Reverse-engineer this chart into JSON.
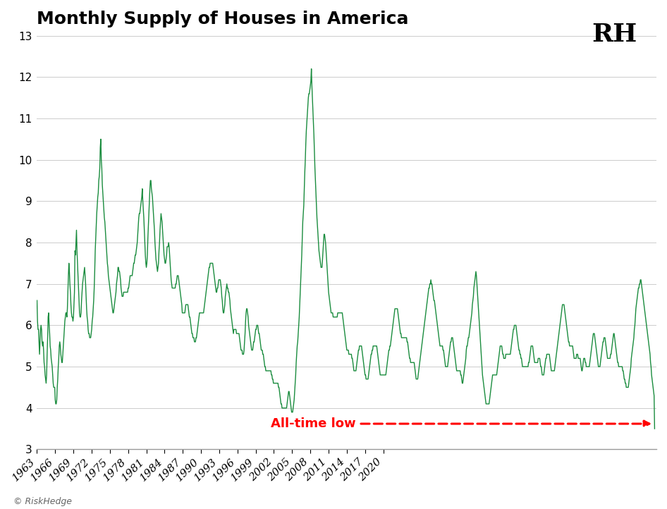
{
  "title": "Monthly Supply of Houses in America",
  "line_color": "#1a8c3e",
  "background_color": "#ffffff",
  "grid_color": "#cccccc",
  "annotation_color": "#ff0000",
  "annotation_text": "All-time low",
  "yticks": [
    3,
    4,
    5,
    6,
    7,
    8,
    9,
    10,
    11,
    12,
    13
  ],
  "xtick_years": [
    1963,
    1966,
    1969,
    1972,
    1975,
    1978,
    1981,
    1984,
    1987,
    1990,
    1993,
    1996,
    1999,
    2002,
    2005,
    2008,
    2011,
    2014,
    2017,
    2020
  ],
  "ylim": [
    3,
    13
  ],
  "logo_text": "RH",
  "footer_text": "© RiskHedge",
  "start_year": 1963,
  "start_month": 1,
  "values": [
    6.6,
    6.1,
    5.9,
    5.9,
    5.6,
    5.3,
    5.6,
    5.9,
    6.0,
    5.9,
    5.6,
    5.5,
    5.6,
    5.4,
    5.1,
    5.0,
    4.8,
    4.7,
    4.6,
    4.8,
    5.3,
    5.7,
    6.2,
    6.3,
    6.0,
    5.8,
    5.5,
    5.4,
    5.2,
    5.1,
    5.0,
    4.8,
    4.6,
    4.5,
    4.5,
    4.5,
    4.2,
    4.1,
    4.1,
    4.2,
    4.5,
    4.7,
    5.0,
    5.2,
    5.5,
    5.6,
    5.5,
    5.3,
    5.2,
    5.1,
    5.1,
    5.3,
    5.5,
    5.7,
    5.9,
    6.1,
    6.2,
    6.3,
    6.3,
    6.2,
    6.4,
    6.8,
    7.2,
    7.5,
    7.3,
    7.0,
    6.8,
    6.5,
    6.3,
    6.2,
    6.2,
    6.1,
    6.2,
    6.5,
    6.8,
    7.8,
    7.7,
    8.0,
    8.3,
    7.8,
    7.5,
    7.2,
    6.9,
    6.6,
    6.3,
    6.2,
    6.2,
    6.3,
    6.6,
    6.8,
    7.0,
    7.1,
    7.2,
    7.3,
    7.4,
    7.2,
    7.0,
    6.7,
    6.4,
    6.2,
    6.1,
    5.9,
    5.8,
    5.8,
    5.7,
    5.7,
    5.7,
    5.8,
    5.9,
    6.1,
    6.2,
    6.4,
    6.6,
    6.9,
    7.3,
    7.8,
    8.1,
    8.4,
    8.7,
    8.9,
    9.1,
    9.2,
    9.5,
    9.6,
    9.8,
    10.3,
    10.5,
    10.0,
    9.8,
    9.4,
    9.2,
    9.0,
    8.8,
    8.6,
    8.5,
    8.3,
    8.1,
    7.9,
    7.7,
    7.5,
    7.4,
    7.2,
    7.1,
    7.0,
    6.9,
    6.8,
    6.7,
    6.6,
    6.5,
    6.4,
    6.3,
    6.3,
    6.4,
    6.5,
    6.6,
    6.7,
    6.8,
    7.0,
    7.1,
    7.2,
    7.4,
    7.4,
    7.3,
    7.3,
    7.2,
    7.1,
    6.9,
    6.8,
    6.7,
    6.7,
    6.7,
    6.8,
    6.8,
    6.8,
    6.8,
    6.8,
    6.8,
    6.8,
    6.8,
    6.8,
    6.9,
    6.9,
    7.0,
    7.1,
    7.2,
    7.2,
    7.2,
    7.2,
    7.2,
    7.3,
    7.4,
    7.5,
    7.5,
    7.6,
    7.7,
    7.7,
    7.8,
    7.9,
    8.0,
    8.2,
    8.4,
    8.6,
    8.7,
    8.7,
    8.8,
    8.9,
    9.0,
    9.1,
    9.3,
    9.0,
    8.8,
    8.6,
    8.3,
    8.0,
    7.7,
    7.5,
    7.4,
    7.5,
    7.7,
    8.1,
    8.4,
    8.7,
    9.0,
    9.3,
    9.5,
    9.5,
    9.3,
    9.2,
    9.1,
    8.9,
    8.7,
    8.5,
    8.3,
    8.0,
    7.8,
    7.6,
    7.5,
    7.4,
    7.3,
    7.4,
    7.5,
    7.8,
    8.0,
    8.3,
    8.5,
    8.7,
    8.6,
    8.5,
    8.3,
    8.1,
    7.9,
    7.7,
    7.6,
    7.5,
    7.5,
    7.6,
    7.7,
    7.9,
    7.9,
    7.9,
    8.0,
    7.9,
    7.7,
    7.5,
    7.3,
    7.1,
    7.0,
    6.9,
    6.9,
    6.9,
    6.9,
    6.9,
    6.9,
    6.9,
    7.0,
    7.0,
    7.1,
    7.2,
    7.2,
    7.2,
    7.1,
    7.0,
    6.9,
    6.8,
    6.7,
    6.6,
    6.5,
    6.3,
    6.3,
    6.3,
    6.3,
    6.3,
    6.3,
    6.4,
    6.5,
    6.5,
    6.5,
    6.5,
    6.5,
    6.4,
    6.3,
    6.2,
    6.2,
    6.1,
    6.0,
    5.9,
    5.8,
    5.8,
    5.7,
    5.7,
    5.7,
    5.6,
    5.6,
    5.6,
    5.7,
    5.7,
    5.8,
    5.9,
    6.0,
    6.1,
    6.2,
    6.3,
    6.3,
    6.3,
    6.3,
    6.3,
    6.3,
    6.3,
    6.3,
    6.3,
    6.4,
    6.5,
    6.6,
    6.7,
    6.8,
    6.9,
    7.0,
    7.1,
    7.2,
    7.3,
    7.4,
    7.4,
    7.5,
    7.5,
    7.5,
    7.5,
    7.5,
    7.5,
    7.4,
    7.3,
    7.2,
    7.1,
    7.0,
    6.9,
    6.8,
    6.8,
    6.9,
    6.9,
    7.0,
    7.1,
    7.1,
    7.1,
    7.1,
    7.0,
    6.9,
    6.7,
    6.6,
    6.4,
    6.3,
    6.3,
    6.4,
    6.5,
    6.7,
    6.8,
    6.9,
    7.0,
    6.9,
    6.9,
    6.8,
    6.8,
    6.7,
    6.6,
    6.4,
    6.3,
    6.2,
    6.1,
    6.0,
    5.9,
    5.8,
    5.9,
    5.9,
    5.9,
    5.9,
    5.9,
    5.8,
    5.8,
    5.8,
    5.8,
    5.8,
    5.8,
    5.7,
    5.6,
    5.5,
    5.4,
    5.4,
    5.4,
    5.3,
    5.3,
    5.3,
    5.4,
    5.6,
    5.8,
    6.1,
    6.3,
    6.4,
    6.4,
    6.3,
    6.2,
    6.0,
    5.9,
    5.8,
    5.7,
    5.6,
    5.5,
    5.4,
    5.4,
    5.4,
    5.5,
    5.6,
    5.6,
    5.7,
    5.8,
    5.9,
    5.9,
    6.0,
    6.0,
    6.0,
    5.9,
    5.8,
    5.8,
    5.7,
    5.6,
    5.5,
    5.4,
    5.4,
    5.4,
    5.3,
    5.3,
    5.2,
    5.1,
    5.0,
    5.0,
    4.9,
    4.9,
    4.9,
    4.9,
    4.9,
    4.9,
    4.9,
    4.9,
    4.9,
    4.9,
    4.9,
    4.8,
    4.8,
    4.7,
    4.7,
    4.6,
    4.6,
    4.6,
    4.6,
    4.6,
    4.6,
    4.6,
    4.6,
    4.6,
    4.6,
    4.5,
    4.5,
    4.4,
    4.3,
    4.2,
    4.1,
    4.1,
    4.0,
    4.0,
    4.0,
    4.0,
    4.0,
    4.0,
    4.0,
    4.0,
    4.0,
    4.0,
    4.1,
    4.2,
    4.3,
    4.4,
    4.4,
    4.3,
    4.2,
    4.1,
    4.0,
    3.9,
    3.9,
    3.9,
    4.0,
    4.1,
    4.2,
    4.4,
    4.6,
    4.8,
    5.1,
    5.3,
    5.5,
    5.6,
    5.8,
    6.0,
    6.2,
    6.5,
    6.8,
    7.1,
    7.4,
    7.7,
    8.1,
    8.5,
    8.7,
    8.9,
    9.3,
    9.7,
    10.0,
    10.4,
    10.7,
    10.9,
    11.1,
    11.3,
    11.5,
    11.6,
    11.6,
    11.7,
    11.8,
    11.9,
    12.2,
    11.8,
    11.5,
    11.2,
    10.9,
    10.6,
    10.2,
    9.8,
    9.5,
    9.2,
    8.9,
    8.6,
    8.4,
    8.2,
    8.0,
    7.8,
    7.7,
    7.6,
    7.5,
    7.4,
    7.4,
    7.4,
    7.6,
    7.8,
    8.0,
    8.2,
    8.2,
    8.1,
    8.0,
    7.8,
    7.6,
    7.4,
    7.2,
    7.0,
    6.8,
    6.7,
    6.6,
    6.5,
    6.4,
    6.3,
    6.3,
    6.3,
    6.3,
    6.2,
    6.2,
    6.2,
    6.2,
    6.2,
    6.2,
    6.2,
    6.2,
    6.2,
    6.3,
    6.3,
    6.3,
    6.3,
    6.3,
    6.3,
    6.3,
    6.3,
    6.3,
    6.3,
    6.2,
    6.1,
    6.0,
    5.9,
    5.8,
    5.7,
    5.6,
    5.5,
    5.4,
    5.4,
    5.4,
    5.4,
    5.3,
    5.3,
    5.3,
    5.3,
    5.3,
    5.3,
    5.2,
    5.2,
    5.1,
    5.0,
    4.9,
    4.9,
    4.9,
    4.9,
    4.9,
    5.0,
    5.1,
    5.2,
    5.3,
    5.4,
    5.4,
    5.5,
    5.5,
    5.5,
    5.5,
    5.5,
    5.4,
    5.3,
    5.2,
    5.1,
    5.0,
    4.9,
    4.8,
    4.8,
    4.7,
    4.7,
    4.7,
    4.7,
    4.7,
    4.8,
    4.9,
    5.0,
    5.1,
    5.2,
    5.3,
    5.3,
    5.4,
    5.4,
    5.5,
    5.5,
    5.5,
    5.5,
    5.5,
    5.5,
    5.5,
    5.5,
    5.4,
    5.3,
    5.2,
    5.1,
    5.0,
    4.9,
    4.8,
    4.8,
    4.8,
    4.8,
    4.8,
    4.8,
    4.8,
    4.8,
    4.8,
    4.8,
    4.8,
    4.8,
    4.9,
    5.0,
    5.1,
    5.2,
    5.3,
    5.4,
    5.4,
    5.5,
    5.5,
    5.6,
    5.7,
    5.8,
    5.9,
    6.0,
    6.1,
    6.2,
    6.3,
    6.4,
    6.4,
    6.4,
    6.4,
    6.4,
    6.4,
    6.3,
    6.2,
    6.1,
    6.0,
    5.9,
    5.8,
    5.8,
    5.7,
    5.7,
    5.7,
    5.7,
    5.7,
    5.7,
    5.7,
    5.7,
    5.7,
    5.7,
    5.7,
    5.6,
    5.6,
    5.5,
    5.4,
    5.3,
    5.2,
    5.2,
    5.1,
    5.1,
    5.1,
    5.1,
    5.1,
    5.1,
    5.1,
    5.1,
    5.0,
    4.9,
    4.8,
    4.7,
    4.7,
    4.7,
    4.7,
    4.8,
    4.9,
    5.0,
    5.1,
    5.2,
    5.3,
    5.4,
    5.5,
    5.6,
    5.7,
    5.8,
    5.9,
    6.0,
    6.1,
    6.2,
    6.3,
    6.4,
    6.5,
    6.6,
    6.7,
    6.8,
    6.9,
    6.9,
    7.0,
    7.0,
    7.1,
    7.0,
    7.0,
    6.9,
    6.8,
    6.7,
    6.6,
    6.6,
    6.5,
    6.4,
    6.3,
    6.2,
    6.1,
    6.0,
    5.9,
    5.8,
    5.7,
    5.6,
    5.5,
    5.5,
    5.5,
    5.5,
    5.5,
    5.5,
    5.4,
    5.4,
    5.3,
    5.2,
    5.1,
    5.0,
    5.0,
    5.0,
    5.0,
    5.0,
    5.1,
    5.2,
    5.3,
    5.4,
    5.5,
    5.6,
    5.6,
    5.7,
    5.7,
    5.7,
    5.6,
    5.5,
    5.4,
    5.3,
    5.2,
    5.1,
    5.0,
    4.9,
    4.9,
    4.9,
    4.9,
    4.9,
    4.9,
    4.9,
    4.9,
    4.8,
    4.8,
    4.7,
    4.6,
    4.6,
    4.7,
    4.8,
    4.9,
    5.0,
    5.1,
    5.2,
    5.4,
    5.5,
    5.5,
    5.6,
    5.7,
    5.7,
    5.8,
    5.9,
    6.0,
    6.1,
    6.2,
    6.3,
    6.5,
    6.6,
    6.7,
    6.9,
    7.0,
    7.1,
    7.2,
    7.3,
    7.2,
    7.0,
    6.8,
    6.6,
    6.4,
    6.2,
    6.0,
    5.8,
    5.6,
    5.4,
    5.2,
    5.0,
    4.8,
    4.7,
    4.6,
    4.5,
    4.4,
    4.3,
    4.2,
    4.1,
    4.1,
    4.1,
    4.1,
    4.1,
    4.1,
    4.1,
    4.2,
    4.3,
    4.4,
    4.5,
    4.6,
    4.7,
    4.8,
    4.8,
    4.8,
    4.8,
    4.8,
    4.8,
    4.8,
    4.8,
    4.8,
    4.9,
    5.0,
    5.1,
    5.2,
    5.3,
    5.4,
    5.5,
    5.5,
    5.5,
    5.5,
    5.4,
    5.3,
    5.3,
    5.2,
    5.2,
    5.2,
    5.2,
    5.3,
    5.3,
    5.3,
    5.3,
    5.3,
    5.3,
    5.3,
    5.3,
    5.3,
    5.3,
    5.4,
    5.5,
    5.6,
    5.7,
    5.8,
    5.9,
    5.9,
    6.0,
    6.0,
    6.0,
    6.0,
    5.9,
    5.8,
    5.7,
    5.6,
    5.5,
    5.4,
    5.4,
    5.3,
    5.3,
    5.2,
    5.2,
    5.1,
    5.0,
    5.0,
    5.0,
    5.0,
    5.0,
    5.0,
    5.0,
    5.0,
    5.0,
    5.0,
    5.0,
    5.0,
    5.1,
    5.1,
    5.2,
    5.3,
    5.4,
    5.5,
    5.5,
    5.5,
    5.5,
    5.4,
    5.3,
    5.2,
    5.1,
    5.1,
    5.1,
    5.1,
    5.1,
    5.1,
    5.1,
    5.2,
    5.2,
    5.2,
    5.2,
    5.1,
    5.0,
    5.0,
    4.9,
    4.8,
    4.8,
    4.8,
    4.8,
    4.9,
    5.0,
    5.1,
    5.2,
    5.2,
    5.3,
    5.3,
    5.3,
    5.3,
    5.3,
    5.3,
    5.2,
    5.1,
    5.0,
    4.9,
    4.9,
    4.9,
    4.9,
    4.9,
    4.9,
    4.9,
    5.0,
    5.1,
    5.2,
    5.3,
    5.4,
    5.5,
    5.6,
    5.7,
    5.8,
    5.9,
    6.0,
    6.1,
    6.2,
    6.3,
    6.4,
    6.5,
    6.5,
    6.5,
    6.5,
    6.4,
    6.3,
    6.2,
    6.1,
    6.0,
    5.9,
    5.8,
    5.7,
    5.6,
    5.6,
    5.5,
    5.5,
    5.5,
    5.5,
    5.5,
    5.5,
    5.5,
    5.4,
    5.3,
    5.2,
    5.2,
    5.2,
    5.2,
    5.2,
    5.3,
    5.3,
    5.3,
    5.2,
    5.2,
    5.2,
    5.2,
    5.2,
    5.1,
    5.0,
    4.9,
    4.9,
    5.0,
    5.1,
    5.2,
    5.2,
    5.2,
    5.1,
    5.1,
    5.0,
    5.0,
    5.0,
    5.0,
    5.0,
    5.0,
    5.0,
    5.1,
    5.2,
    5.3,
    5.4,
    5.5,
    5.6,
    5.7,
    5.8,
    5.8,
    5.8,
    5.7,
    5.6,
    5.5,
    5.4,
    5.3,
    5.2,
    5.1,
    5.0,
    5.0,
    5.0,
    5.0,
    5.1,
    5.2,
    5.3,
    5.4,
    5.5,
    5.6,
    5.6,
    5.7,
    5.7,
    5.7,
    5.6,
    5.5,
    5.4,
    5.3,
    5.2,
    5.2,
    5.2,
    5.2,
    5.2,
    5.2,
    5.3,
    5.3,
    5.4,
    5.5,
    5.6,
    5.7,
    5.8,
    5.8,
    5.7,
    5.6,
    5.5,
    5.4,
    5.3,
    5.2,
    5.1,
    5.1,
    5.0,
    5.0,
    5.0,
    5.0,
    5.0,
    5.0,
    5.0,
    5.0,
    4.9,
    4.9,
    4.8,
    4.7,
    4.7,
    4.6,
    4.6,
    4.5,
    4.5,
    4.5,
    4.5,
    4.5,
    4.6,
    4.7,
    4.8,
    4.9,
    5.0,
    5.2,
    5.3,
    5.4,
    5.5,
    5.6,
    5.7,
    5.9,
    6.0,
    6.2,
    6.4,
    6.5,
    6.6,
    6.7,
    6.8,
    6.9,
    6.9,
    7.0,
    7.0,
    7.1,
    7.1,
    7.0,
    6.9,
    6.8,
    6.7,
    6.6,
    6.5,
    6.4,
    6.3,
    6.2,
    6.1,
    6.0,
    5.9,
    5.8,
    5.7,
    5.6,
    5.5,
    5.4,
    5.3,
    5.1,
    5.0,
    4.8,
    4.7,
    4.6,
    4.5,
    4.4,
    4.3,
    3.5
  ]
}
